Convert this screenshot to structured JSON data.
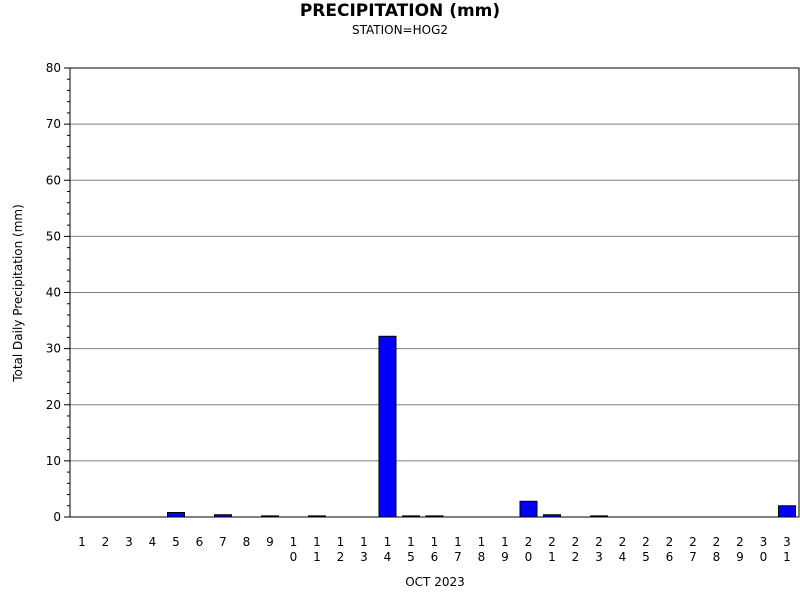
{
  "chart_data": {
    "type": "bar",
    "title": "PRECIPITATION (mm)",
    "subtitle": "STATION=HOG2",
    "xlabel": "OCT 2023",
    "ylabel": "Total Daily Precipitation (mm)",
    "ylim": [
      0,
      80
    ],
    "yticks": [
      0,
      10,
      20,
      30,
      40,
      50,
      60,
      70,
      80
    ],
    "grid": true,
    "categories": [
      "1",
      "2",
      "3",
      "4",
      "5",
      "6",
      "7",
      "8",
      "9",
      "10",
      "11",
      "12",
      "13",
      "14",
      "15",
      "16",
      "17",
      "18",
      "19",
      "20",
      "21",
      "22",
      "23",
      "24",
      "25",
      "26",
      "27",
      "28",
      "29",
      "30",
      "31"
    ],
    "values": [
      0,
      0,
      0,
      0,
      0.8,
      0,
      0.4,
      0,
      0.2,
      0,
      0.2,
      0,
      0,
      32.2,
      0.2,
      0.2,
      0,
      0,
      0,
      2.8,
      0.4,
      0,
      0.2,
      0,
      0,
      0,
      0,
      0,
      0,
      0,
      2.0
    ],
    "bar_color": "#0000ff",
    "grid_color": "#808080"
  }
}
